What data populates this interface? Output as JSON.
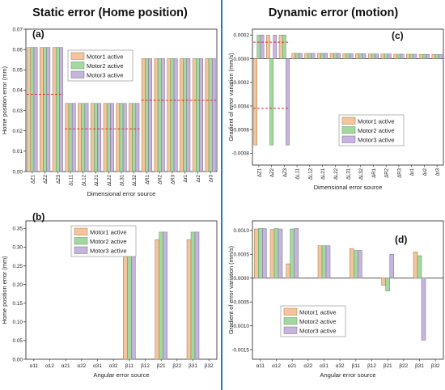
{
  "headings": {
    "left": "Static error (Home position)",
    "right": "Dynamic error (motion)"
  },
  "colors": {
    "motor1": "#f5c49a",
    "motor2": "#a3d9a0",
    "motor3": "#c5b4dc",
    "mean_line": "#e03030",
    "divider": "#2e74c8"
  },
  "chart_data": [
    {
      "id": "a",
      "type": "bar",
      "panel_label": "(a)",
      "xlabel": "Dimensional error source",
      "ylabel": "Home position error (mm)",
      "categories": [
        "ΔZ1",
        "ΔZ2",
        "ΔZ3",
        "ΔL11",
        "ΔL12",
        "ΔL21",
        "ΔL22",
        "ΔL31",
        "ΔL32",
        "ΔR1",
        "ΔR2",
        "ΔR3",
        "Δr1",
        "Δr2",
        "Δr3"
      ],
      "ylim": [
        0,
        0.07
      ],
      "yticks": [
        "0.00",
        "0.01",
        "0.02",
        "0.03",
        "0.04",
        "0.05",
        "0.06",
        "0.07"
      ],
      "legend_position": "top-center",
      "series": [
        {
          "name": "Motor1 active",
          "values": [
            0.061,
            0.061,
            0.061,
            0.0335,
            0.0335,
            0.0335,
            0.0335,
            0.0335,
            0.0335,
            0.0555,
            0.0555,
            0.0555,
            0.0555,
            0.0555,
            0.0555
          ]
        },
        {
          "name": "Motor2 active",
          "values": [
            0.061,
            0.061,
            0.061,
            0.0335,
            0.0335,
            0.0335,
            0.0335,
            0.0335,
            0.0335,
            0.0555,
            0.0555,
            0.0555,
            0.0555,
            0.0555,
            0.0555
          ]
        },
        {
          "name": "Motor3 active",
          "values": [
            0.061,
            0.061,
            0.061,
            0.0335,
            0.0335,
            0.0335,
            0.0335,
            0.0335,
            0.0335,
            0.0555,
            0.0555,
            0.0555,
            0.0555,
            0.0555,
            0.0555
          ]
        }
      ],
      "mean_lines": [
        {
          "from": 0,
          "to": 2,
          "value": 0.038
        },
        {
          "from": 3,
          "to": 8,
          "value": 0.021
        },
        {
          "from": 9,
          "to": 14,
          "value": 0.035
        }
      ]
    },
    {
      "id": "b",
      "type": "bar",
      "panel_label": "(b)",
      "xlabel": "Angular error source",
      "ylabel": "Home position error (mm)",
      "categories": [
        "α11",
        "α12",
        "α21",
        "α22",
        "α31",
        "α32",
        "β11",
        "β12",
        "β21",
        "β22",
        "β31",
        "β32"
      ],
      "ylim": [
        0,
        0.37
      ],
      "yticks": [
        "0.00",
        "0.05",
        "0.10",
        "0.15",
        "0.20",
        "0.25",
        "0.30",
        "0.35"
      ],
      "legend_position": "top-center",
      "series": [
        {
          "name": "Motor1 active",
          "values": [
            0,
            0,
            0,
            0,
            0,
            0,
            0.32,
            0,
            0.32,
            0,
            0.32,
            0
          ]
        },
        {
          "name": "Motor2 active",
          "values": [
            0,
            0,
            0,
            0,
            0,
            0,
            0.34,
            0,
            0.34,
            0,
            0.34,
            0
          ]
        },
        {
          "name": "Motor3 active",
          "values": [
            0,
            0,
            0,
            0,
            0,
            0,
            0.34,
            0,
            0.34,
            0,
            0.34,
            0
          ]
        }
      ],
      "mean_lines": []
    },
    {
      "id": "c",
      "type": "bar",
      "panel_label": "(c)",
      "xlabel": "Dimensional error source",
      "ylabel": "Gradient of error variation (mm/s)",
      "categories": [
        "ΔZ1",
        "ΔZ2",
        "ΔZ3",
        "ΔL11",
        "ΔL12",
        "ΔL21",
        "ΔL22",
        "ΔL31",
        "ΔL32",
        "ΔR1",
        "ΔR2",
        "ΔR3",
        "Δr1",
        "Δr2",
        "Δr3"
      ],
      "ylim": [
        -0.0009,
        0.00025
      ],
      "yticks": [
        "-0.0008",
        "-0.0006",
        "-0.0004",
        "-0.0002",
        "0.0000",
        "0.0002"
      ],
      "legend_position": "bottom-right",
      "series": [
        {
          "name": "Motor1 active",
          "values": [
            -0.00073,
            0.0002,
            0.0002,
            4.5e-05,
            4.5e-05,
            4.5e-05,
            4.5e-05,
            4.2e-05,
            4.2e-05,
            4e-05,
            4e-05,
            3.8e-05,
            3.8e-05,
            3.6e-05,
            3.6e-05
          ]
        },
        {
          "name": "Motor2 active",
          "values": [
            0.0002,
            -0.00073,
            0.0002,
            4.5e-05,
            4.5e-05,
            4.5e-05,
            4.5e-05,
            4.2e-05,
            4.2e-05,
            4e-05,
            4e-05,
            3.8e-05,
            3.8e-05,
            3.6e-05,
            3.6e-05
          ]
        },
        {
          "name": "Motor3 active",
          "values": [
            0.0002,
            0.0002,
            -0.00073,
            4.5e-05,
            4.5e-05,
            4.5e-05,
            4.5e-05,
            4.2e-05,
            4.2e-05,
            4e-05,
            4e-05,
            3.8e-05,
            3.8e-05,
            3.6e-05,
            3.6e-05
          ]
        }
      ],
      "mean_lines": [
        {
          "from": 0,
          "to": 2,
          "value": 0.00014
        },
        {
          "from": 0,
          "to": 2,
          "value": -0.00042
        }
      ]
    },
    {
      "id": "d",
      "type": "bar",
      "panel_label": "(d)",
      "xlabel": "Angular error source",
      "ylabel": "Gradient of error variation (mm/s)",
      "categories": [
        "α11",
        "α12",
        "α21",
        "α22",
        "α31",
        "α32",
        "β11",
        "β12",
        "β21",
        "β22",
        "β31",
        "β32"
      ],
      "ylim": [
        -0.0017,
        0.0012
      ],
      "yticks": [
        "-0.0015",
        "-0.0010",
        "-0.0005",
        "0.0000",
        "0.0005",
        "0.0010"
      ],
      "legend_position": "bottom-left",
      "series": [
        {
          "name": "Motor1 active",
          "values": [
            0.00103,
            0.00102,
            0.0003,
            0,
            0.00068,
            0,
            0.00062,
            0,
            -0.00015,
            0,
            0.00055,
            0
          ]
        },
        {
          "name": "Motor2 active",
          "values": [
            0.00104,
            0.00104,
            0.00103,
            0,
            0.00068,
            0,
            0.00058,
            0,
            -0.00027,
            0,
            0.00047,
            0
          ]
        },
        {
          "name": "Motor3 active",
          "values": [
            0.00104,
            0.00103,
            0.00104,
            0,
            0.00068,
            0,
            0.00058,
            0,
            0.0005,
            0,
            -0.0013,
            0
          ]
        }
      ],
      "mean_lines": []
    }
  ]
}
